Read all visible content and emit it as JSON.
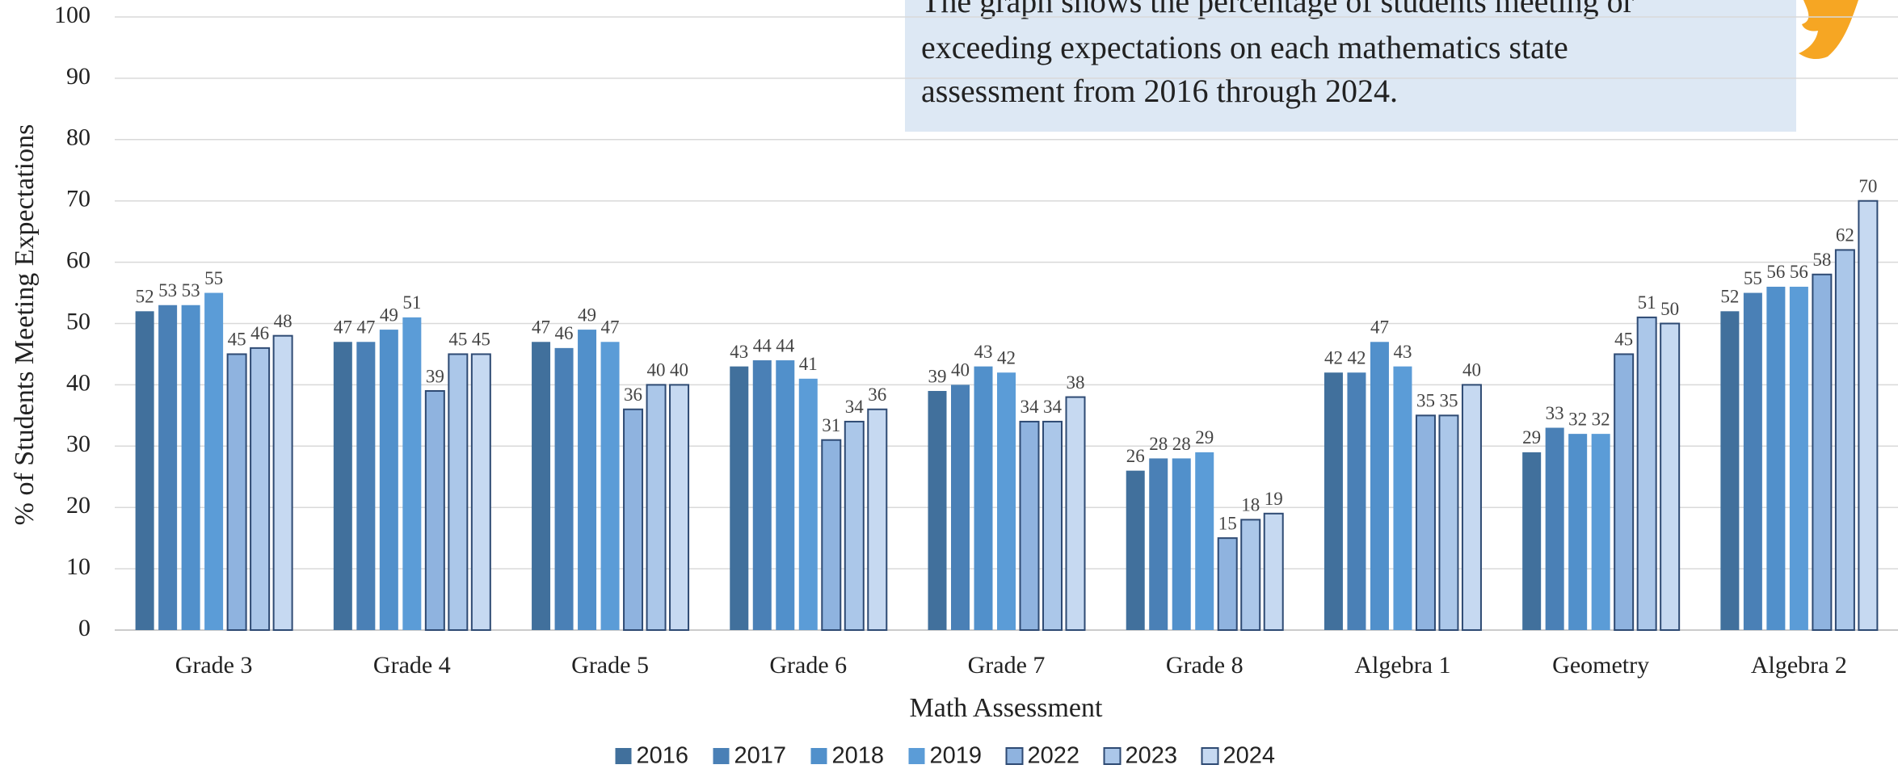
{
  "chart_data": {
    "type": "bar",
    "annotation": [
      "The graph shows the percentage of students meeting or",
      "exceeding expectations on each mathematics state",
      "assessment from 2016 through 2024."
    ],
    "x_label": "Math Assessment",
    "y_label": "% of Students Meeting Expectations",
    "categories": [
      "Grade 3",
      "Grade 4",
      "Grade 5",
      "Grade 6",
      "Grade 7",
      "Grade 8",
      "Algebra 1",
      "Geometry",
      "Algebra 2"
    ],
    "series": [
      {
        "name": "2016",
        "color": "#41709c",
        "values": [
          52,
          47,
          47,
          43,
          39,
          26,
          42,
          29,
          52
        ]
      },
      {
        "name": "2017",
        "color": "#4a80b6",
        "values": [
          53,
          47,
          46,
          44,
          40,
          28,
          42,
          33,
          55
        ]
      },
      {
        "name": "2018",
        "color": "#5190cb",
        "values": [
          53,
          49,
          49,
          44,
          43,
          28,
          47,
          32,
          56
        ]
      },
      {
        "name": "2019",
        "color": "#5b9cd7",
        "values": [
          55,
          51,
          47,
          41,
          42,
          29,
          43,
          32,
          56
        ]
      },
      {
        "name": "2022",
        "color": "#8fb3df",
        "values": [
          45,
          39,
          36,
          31,
          34,
          15,
          35,
          45,
          58
        ]
      },
      {
        "name": "2023",
        "color": "#abc7e9",
        "values": [
          46,
          45,
          40,
          34,
          34,
          18,
          35,
          51,
          62
        ]
      },
      {
        "name": "2024",
        "color": "#c6d9f1",
        "values": [
          48,
          45,
          40,
          36,
          38,
          19,
          40,
          50,
          70
        ]
      }
    ],
    "outlined_series": [
      "2022",
      "2023",
      "2024"
    ],
    "ylim": [
      0,
      100
    ],
    "yticks": [
      0,
      10,
      20,
      30,
      40,
      50,
      60,
      70,
      80,
      90,
      100
    ],
    "grid": true,
    "legend": "bottom"
  }
}
